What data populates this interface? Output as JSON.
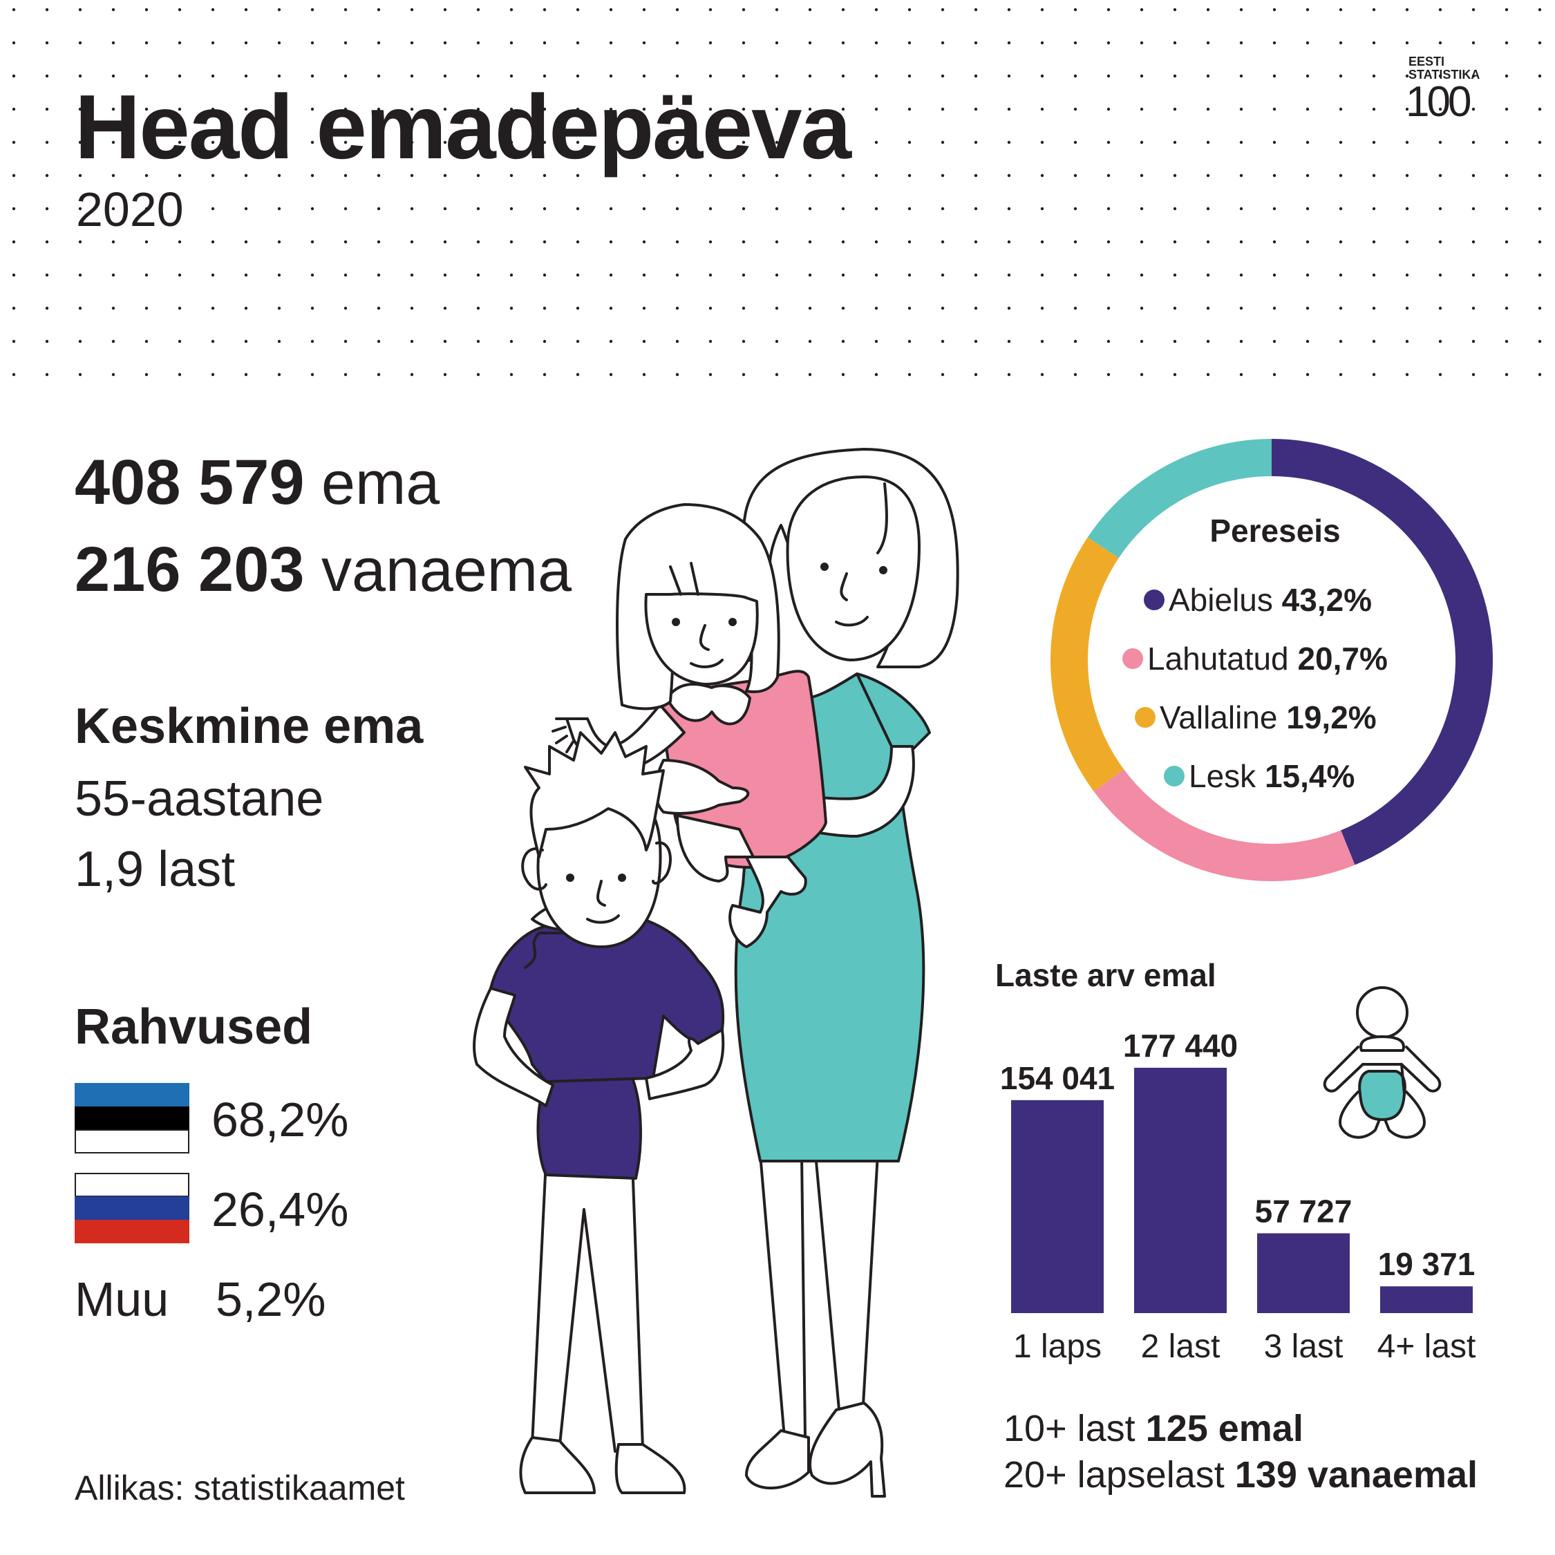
{
  "title": "Head emadepäeva",
  "year": "2020",
  "logo": {
    "line1": "EESTI",
    "line2": "STATISTIKA",
    "number": "100"
  },
  "mothers": {
    "count": "408 579",
    "label": "ema"
  },
  "grandmothers": {
    "count": "216 203",
    "label": "vanaema"
  },
  "average_mother": {
    "title": "Keskmine ema",
    "age": "55-aastane",
    "children": "1,9 last"
  },
  "nationalities": {
    "title": "Rahvused",
    "items": [
      {
        "name": "estonian-flag",
        "value": "68,2%",
        "colors": [
          "#1f6fb5",
          "#000000",
          "#ffffff"
        ]
      },
      {
        "name": "russian-flag",
        "value": "26,4%",
        "colors": [
          "#ffffff",
          "#243f97",
          "#d52b1e"
        ]
      },
      {
        "label": "Muu",
        "value": "5,2%"
      }
    ]
  },
  "source": "Allikas: statistikaamet",
  "colors": {
    "purple": "#3f2e7e",
    "pink": "#f28ba4",
    "yellow": "#efab27",
    "teal": "#5dc4bf",
    "text": "#231f20"
  },
  "chart_data": [
    {
      "type": "pie",
      "title": "Pereseis",
      "slices": [
        {
          "label": "Abielus",
          "value": 43.2,
          "display": "43,2%",
          "color": "#3f2e7e"
        },
        {
          "label": "Lahutatud",
          "value": 20.7,
          "display": "20,7%",
          "color": "#f28ba4"
        },
        {
          "label": "Vallaline",
          "value": 19.2,
          "display": "19,2%",
          "color": "#efab27"
        },
        {
          "label": "Lesk",
          "value": 15.4,
          "display": "15,4%",
          "color": "#5dc4bf"
        }
      ],
      "legend": "center"
    },
    {
      "type": "bar",
      "title": "Laste arv emal",
      "categories": [
        "1 laps",
        "2 last",
        "3 last",
        "4+ last"
      ],
      "values": [
        154041,
        177440,
        57727,
        19371
      ],
      "labels": [
        "154 041",
        "177 440",
        "57 727",
        "19 371"
      ],
      "color": "#3f2e7e"
    }
  ],
  "extra": {
    "line1_prefix": "10+ last",
    "line1_value": "125 emal",
    "line2_prefix": "20+ lapselast",
    "line2_value": "139 vanaemal"
  }
}
